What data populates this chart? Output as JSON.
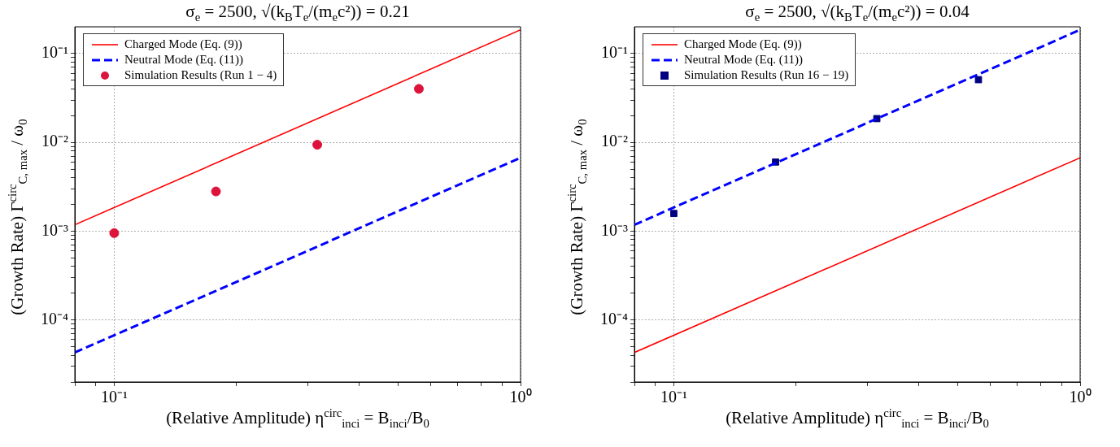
{
  "chart_data": [
    {
      "type": "line",
      "title": "σ$_{e}$ = 2500,  √(k$_{B}$T$_{e}$/(m$_{e}$c²)) = 0.21",
      "xlabel": "(Relative Amplitude)  η$^{circ}$$_{inci}$ = B$_{inci}$/B$_{0}$",
      "ylabel": "(Growth Rate)  Γ$^{circ}$$_{C, max}$ / ω$_{0}$",
      "series": [
        {
          "name": "Charged Mode (Eq. (9))",
          "color": "#ff0000",
          "line_style": "solid",
          "x": [
            0.08,
            1
          ],
          "values": [
            0.00118,
            0.185
          ]
        },
        {
          "name": "Neutral Mode (Eq. (11))",
          "color": "#0000ff",
          "line_style": "dashed",
          "x": [
            0.08,
            1
          ],
          "values": [
            4.3e-05,
            0.0067
          ]
        },
        {
          "name": "Simulation Results (Run 1 − 4)",
          "type": "scatter",
          "color": "#dc143c",
          "marker": "circle",
          "x": [
            0.1,
            0.178,
            0.316,
            0.562
          ],
          "values": [
            0.00095,
            0.0028,
            0.0094,
            0.04
          ]
        }
      ],
      "log": "xy",
      "xlim": [
        0.08,
        1
      ],
      "ylim": [
        2e-05,
        0.2
      ],
      "xticks": [
        {
          "value": 0.08,
          "label": null
        },
        {
          "value": 0.09,
          "label": null
        },
        {
          "value": 0.1,
          "label": "10⁻¹"
        },
        {
          "value": 0.2,
          "label": null
        },
        {
          "value": 0.3,
          "label": null
        },
        {
          "value": 0.4,
          "label": null
        },
        {
          "value": 0.5,
          "label": null
        },
        {
          "value": 0.6,
          "label": null
        },
        {
          "value": 0.7,
          "label": null
        },
        {
          "value": 0.8,
          "label": null
        },
        {
          "value": 0.9,
          "label": null
        },
        {
          "value": 1,
          "label": "10⁰"
        }
      ],
      "yticks": [
        {
          "value": 2e-05,
          "label": null
        },
        {
          "value": 3e-05,
          "label": null
        },
        {
          "value": 4e-05,
          "label": null
        },
        {
          "value": 5e-05,
          "label": null
        },
        {
          "value": 6e-05,
          "label": null
        },
        {
          "value": 7e-05,
          "label": null
        },
        {
          "value": 8e-05,
          "label": null
        },
        {
          "value": 9e-05,
          "label": null
        },
        {
          "value": 0.0001,
          "label": "10⁻⁴"
        },
        {
          "value": 0.0002,
          "label": null
        },
        {
          "value": 0.0003,
          "label": null
        },
        {
          "value": 0.0004,
          "label": null
        },
        {
          "value": 0.0005,
          "label": null
        },
        {
          "value": 0.0006,
          "label": null
        },
        {
          "value": 0.0007,
          "label": null
        },
        {
          "value": 0.0008,
          "label": null
        },
        {
          "value": 0.0009,
          "label": null
        },
        {
          "value": 0.001,
          "label": "10⁻³"
        },
        {
          "value": 0.002,
          "label": null
        },
        {
          "value": 0.003,
          "label": null
        },
        {
          "value": 0.004,
          "label": null
        },
        {
          "value": 0.005,
          "label": null
        },
        {
          "value": 0.006,
          "label": null
        },
        {
          "value": 0.007,
          "label": null
        },
        {
          "value": 0.008,
          "label": null
        },
        {
          "value": 0.009,
          "label": null
        },
        {
          "value": 0.01,
          "label": "10⁻²"
        },
        {
          "value": 0.02,
          "label": null
        },
        {
          "value": 0.03,
          "label": null
        },
        {
          "value": 0.04,
          "label": null
        },
        {
          "value": 0.05,
          "label": null
        },
        {
          "value": 0.06,
          "label": null
        },
        {
          "value": 0.07,
          "label": null
        },
        {
          "value": 0.08,
          "label": null
        },
        {
          "value": 0.09,
          "label": null
        },
        {
          "value": 0.1,
          "label": "10⁻¹"
        }
      ],
      "grid": true,
      "legend": "top left"
    },
    {
      "type": "line",
      "title": "σ$_{e}$ = 2500,  √(k$_{B}$T$_{e}$/(m$_{e}$c²)) = 0.04",
      "xlabel": "(Relative Amplitude)  η$^{circ}$$_{inci}$ = B$_{inci}$/B$_{0}$",
      "ylabel": "(Growth Rate)  Γ$^{circ}$$_{C, max}$ / ω$_{0}$",
      "series": [
        {
          "name": "Charged Mode (Eq. (9))",
          "color": "#ff0000",
          "line_style": "solid",
          "x": [
            0.08,
            1
          ],
          "values": [
            4.3e-05,
            0.0067
          ]
        },
        {
          "name": "Neutral Mode (Eq. (11))",
          "color": "#0000ff",
          "line_style": "dashed",
          "x": [
            0.08,
            1
          ],
          "values": [
            0.00118,
            0.185
          ]
        },
        {
          "name": "Simulation Results (Run 16 − 19)",
          "type": "scatter",
          "color": "#000080",
          "marker": "square",
          "x": [
            0.1,
            0.178,
            0.316,
            0.562
          ],
          "values": [
            0.00158,
            0.006,
            0.0185,
            0.0508
          ]
        }
      ],
      "log": "xy",
      "xlim": [
        0.08,
        1
      ],
      "ylim": [
        2e-05,
        0.2
      ],
      "xticks": [
        {
          "value": 0.08,
          "label": null
        },
        {
          "value": 0.09,
          "label": null
        },
        {
          "value": 0.1,
          "label": "10⁻¹"
        },
        {
          "value": 0.2,
          "label": null
        },
        {
          "value": 0.3,
          "label": null
        },
        {
          "value": 0.4,
          "label": null
        },
        {
          "value": 0.5,
          "label": null
        },
        {
          "value": 0.6,
          "label": null
        },
        {
          "value": 0.7,
          "label": null
        },
        {
          "value": 0.8,
          "label": null
        },
        {
          "value": 0.9,
          "label": null
        },
        {
          "value": 1,
          "label": "10⁰"
        }
      ],
      "yticks": [
        {
          "value": 2e-05,
          "label": null
        },
        {
          "value": 3e-05,
          "label": null
        },
        {
          "value": 4e-05,
          "label": null
        },
        {
          "value": 5e-05,
          "label": null
        },
        {
          "value": 6e-05,
          "label": null
        },
        {
          "value": 7e-05,
          "label": null
        },
        {
          "value": 8e-05,
          "label": null
        },
        {
          "value": 9e-05,
          "label": null
        },
        {
          "value": 0.0001,
          "label": "10⁻⁴"
        },
        {
          "value": 0.0002,
          "label": null
        },
        {
          "value": 0.0003,
          "label": null
        },
        {
          "value": 0.0004,
          "label": null
        },
        {
          "value": 0.0005,
          "label": null
        },
        {
          "value": 0.0006,
          "label": null
        },
        {
          "value": 0.0007,
          "label": null
        },
        {
          "value": 0.0008,
          "label": null
        },
        {
          "value": 0.0009,
          "label": null
        },
        {
          "value": 0.001,
          "label": "10⁻³"
        },
        {
          "value": 0.002,
          "label": null
        },
        {
          "value": 0.003,
          "label": null
        },
        {
          "value": 0.004,
          "label": null
        },
        {
          "value": 0.005,
          "label": null
        },
        {
          "value": 0.006,
          "label": null
        },
        {
          "value": 0.007,
          "label": null
        },
        {
          "value": 0.008,
          "label": null
        },
        {
          "value": 0.009,
          "label": null
        },
        {
          "value": 0.01,
          "label": "10⁻²"
        },
        {
          "value": 0.02,
          "label": null
        },
        {
          "value": 0.03,
          "label": null
        },
        {
          "value": 0.04,
          "label": null
        },
        {
          "value": 0.05,
          "label": null
        },
        {
          "value": 0.06,
          "label": null
        },
        {
          "value": 0.07,
          "label": null
        },
        {
          "value": 0.08,
          "label": null
        },
        {
          "value": 0.09,
          "label": null
        },
        {
          "value": 0.1,
          "label": "10⁻¹"
        }
      ],
      "grid": true,
      "legend": "top left"
    }
  ]
}
